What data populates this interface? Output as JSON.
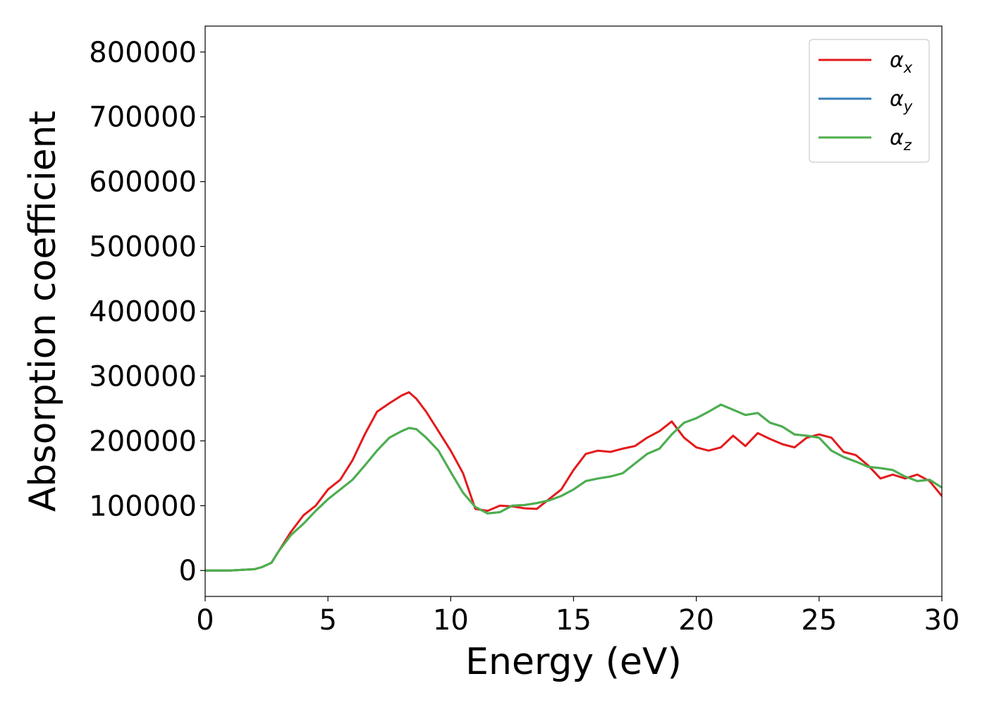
{
  "chart_data": {
    "type": "line",
    "title": "",
    "xlabel": "Energy (eV)",
    "ylabel": "Absorption coefficient",
    "xlim": [
      0,
      30
    ],
    "ylim": [
      -40000,
      840000
    ],
    "xticks": [
      0,
      5,
      10,
      15,
      20,
      25,
      30
    ],
    "yticks": [
      0,
      100000,
      200000,
      300000,
      400000,
      500000,
      600000,
      700000,
      800000
    ],
    "grid": false,
    "legend_position": "top-right",
    "series": [
      {
        "name": "α",
        "subscript": "x",
        "color": "#e41a1c",
        "x": [
          0,
          1,
          2,
          2.3,
          2.7,
          3,
          3.5,
          4,
          4.5,
          5,
          5.5,
          6,
          6.5,
          7,
          7.5,
          8,
          8.3,
          8.6,
          9,
          9.5,
          10,
          10.5,
          11,
          11.5,
          12,
          12.5,
          13,
          13.5,
          14,
          14.5,
          15,
          15.5,
          16,
          16.5,
          17,
          17.5,
          18,
          18.5,
          19,
          19.5,
          20,
          20.5,
          21,
          21.5,
          22,
          22.5,
          23,
          23.5,
          24,
          24.5,
          25,
          25.5,
          26,
          26.5,
          27,
          27.5,
          28,
          28.5,
          29,
          29.5,
          30
        ],
        "y": [
          0,
          0,
          2000,
          5000,
          12000,
          30000,
          60000,
          85000,
          100000,
          125000,
          140000,
          170000,
          210000,
          245000,
          258000,
          270000,
          275000,
          265000,
          245000,
          215000,
          185000,
          150000,
          95000,
          92000,
          100000,
          99000,
          96000,
          95000,
          110000,
          125000,
          155000,
          180000,
          185000,
          183000,
          188000,
          192000,
          205000,
          215000,
          230000,
          205000,
          190000,
          185000,
          190000,
          208000,
          192000,
          212000,
          203000,
          195000,
          190000,
          205000,
          210000,
          205000,
          183000,
          178000,
          162000,
          142000,
          148000,
          142000,
          148000,
          138000,
          115000
        ]
      },
      {
        "name": "α",
        "subscript": "y",
        "color": "#377eb8",
        "x": [
          0,
          1,
          2,
          2.3,
          2.7,
          3,
          3.5,
          4,
          4.5,
          5,
          5.5,
          6,
          6.5,
          7,
          7.5,
          8,
          8.3,
          8.6,
          9,
          9.5,
          10,
          10.5,
          11,
          11.5,
          12,
          12.5,
          13,
          13.5,
          14,
          14.5,
          15,
          15.5,
          16,
          16.5,
          17,
          17.5,
          18,
          18.5,
          19,
          19.5,
          20,
          20.5,
          21,
          21.5,
          22,
          22.5,
          23,
          23.5,
          24,
          24.5,
          25,
          25.5,
          26,
          26.5,
          27,
          27.5,
          28,
          28.5,
          29,
          29.5,
          30
        ],
        "y": [
          0,
          0,
          2000,
          5000,
          12000,
          30000,
          55000,
          72000,
          92000,
          110000,
          125000,
          140000,
          162000,
          185000,
          205000,
          215000,
          220000,
          218000,
          205000,
          185000,
          152000,
          120000,
          98000,
          88000,
          90000,
          100000,
          101000,
          104000,
          108000,
          115000,
          125000,
          138000,
          142000,
          145000,
          150000,
          165000,
          180000,
          188000,
          210000,
          228000,
          235000,
          245000,
          256000,
          248000,
          240000,
          243000,
          228000,
          222000,
          210000,
          208000,
          205000,
          185000,
          175000,
          168000,
          160000,
          158000,
          155000,
          145000,
          138000,
          140000,
          128000
        ]
      },
      {
        "name": "α",
        "subscript": "z",
        "color": "#4daf4a",
        "x": [
          0,
          1,
          2,
          2.3,
          2.7,
          3,
          3.5,
          4,
          4.5,
          5,
          5.5,
          6,
          6.5,
          7,
          7.5,
          8,
          8.3,
          8.6,
          9,
          9.5,
          10,
          10.5,
          11,
          11.5,
          12,
          12.5,
          13,
          13.5,
          14,
          14.5,
          15,
          15.5,
          16,
          16.5,
          17,
          17.5,
          18,
          18.5,
          19,
          19.5,
          20,
          20.5,
          21,
          21.5,
          22,
          22.5,
          23,
          23.5,
          24,
          24.5,
          25,
          25.5,
          26,
          26.5,
          27,
          27.5,
          28,
          28.5,
          29,
          29.5,
          30
        ],
        "y": [
          0,
          0,
          2000,
          5000,
          12000,
          30000,
          55000,
          72000,
          92000,
          110000,
          125000,
          140000,
          162000,
          185000,
          205000,
          215000,
          220000,
          218000,
          205000,
          185000,
          152000,
          120000,
          98000,
          88000,
          90000,
          100000,
          101000,
          104000,
          108000,
          115000,
          125000,
          138000,
          142000,
          145000,
          150000,
          165000,
          180000,
          188000,
          210000,
          228000,
          235000,
          245000,
          256000,
          248000,
          240000,
          243000,
          228000,
          222000,
          210000,
          208000,
          205000,
          185000,
          175000,
          168000,
          160000,
          158000,
          155000,
          145000,
          138000,
          140000,
          128000
        ]
      }
    ]
  }
}
